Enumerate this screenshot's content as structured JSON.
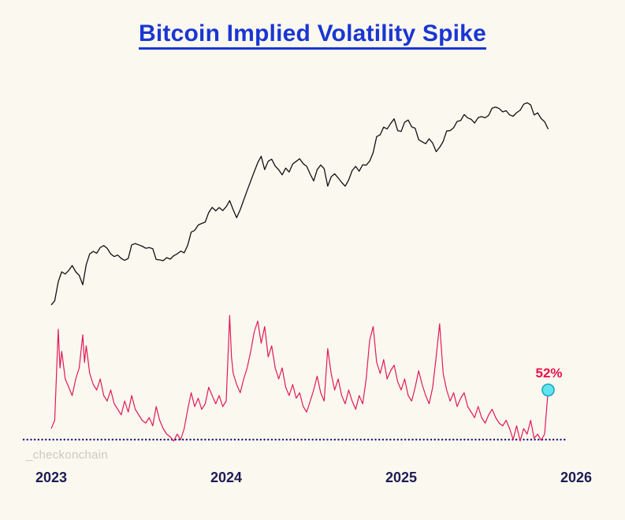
{
  "watermark": "_checkonchain",
  "colors": {
    "background": "#fbf8f0",
    "title": "#1a36d2",
    "price_line": "#111111",
    "vol_line": "#e01a55",
    "baseline": "#20207e",
    "marker_fill": "#63e3f2",
    "marker_stroke": "#18a7bd",
    "annotation": "#e8114b",
    "tick_label": "#1c1c55",
    "watermark": "#ccc9c1"
  },
  "chart_data": {
    "type": "line",
    "title": "Bitcoin Implied Volatility Spike",
    "xlabel": "",
    "ylabel": "",
    "x_ticks": [
      2023,
      2024,
      2025,
      2026
    ],
    "x_range": [
      2023.0,
      2025.84
    ],
    "grid": false,
    "legend": "none",
    "price_scale": "log",
    "price_ylim": [
      15,
      135
    ],
    "vol_ylim": [
      32,
      84
    ],
    "baseline": {
      "value": 34,
      "style": "dotted"
    },
    "annotation": {
      "text": "52%",
      "value": 52,
      "t": 2025.84
    },
    "series": [
      {
        "name": "btc-price-usd-thousands",
        "axis": "price",
        "points": [
          [
            2023.0,
            16.6
          ],
          [
            2023.02,
            17.3
          ],
          [
            2023.04,
            20.9
          ],
          [
            2023.06,
            23.1
          ],
          [
            2023.08,
            22.6
          ],
          [
            2023.1,
            23.4
          ],
          [
            2023.12,
            24.6
          ],
          [
            2023.14,
            23.1
          ],
          [
            2023.16,
            22.3
          ],
          [
            2023.18,
            20.3
          ],
          [
            2023.2,
            24.8
          ],
          [
            2023.22,
            27.6
          ],
          [
            2023.24,
            28.3
          ],
          [
            2023.26,
            27.8
          ],
          [
            2023.28,
            29.4
          ],
          [
            2023.3,
            30.0
          ],
          [
            2023.32,
            29.2
          ],
          [
            2023.34,
            27.6
          ],
          [
            2023.36,
            26.9
          ],
          [
            2023.38,
            27.3
          ],
          [
            2023.4,
            26.4
          ],
          [
            2023.42,
            25.9
          ],
          [
            2023.44,
            26.4
          ],
          [
            2023.46,
            30.2
          ],
          [
            2023.48,
            30.6
          ],
          [
            2023.5,
            30.2
          ],
          [
            2023.52,
            29.8
          ],
          [
            2023.54,
            29.2
          ],
          [
            2023.56,
            29.4
          ],
          [
            2023.58,
            29.1
          ],
          [
            2023.6,
            26.1
          ],
          [
            2023.62,
            26.0
          ],
          [
            2023.64,
            25.8
          ],
          [
            2023.66,
            26.6
          ],
          [
            2023.68,
            26.2
          ],
          [
            2023.7,
            27.1
          ],
          [
            2023.72,
            27.6
          ],
          [
            2023.74,
            28.4
          ],
          [
            2023.76,
            27.9
          ],
          [
            2023.78,
            30.1
          ],
          [
            2023.8,
            34.3
          ],
          [
            2023.82,
            34.9
          ],
          [
            2023.84,
            36.8
          ],
          [
            2023.86,
            37.4
          ],
          [
            2023.88,
            37.9
          ],
          [
            2023.9,
            41.7
          ],
          [
            2023.92,
            43.9
          ],
          [
            2023.94,
            42.4
          ],
          [
            2023.96,
            43.8
          ],
          [
            2023.98,
            42.5
          ],
          [
            2024.0,
            44.2
          ],
          [
            2024.02,
            46.9
          ],
          [
            2024.04,
            42.8
          ],
          [
            2024.06,
            39.6
          ],
          [
            2024.08,
            42.9
          ],
          [
            2024.1,
            47.2
          ],
          [
            2024.12,
            51.9
          ],
          [
            2024.14,
            57.1
          ],
          [
            2024.16,
            62.5
          ],
          [
            2024.18,
            68.4
          ],
          [
            2024.2,
            73.0
          ],
          [
            2024.22,
            63.9
          ],
          [
            2024.24,
            69.5
          ],
          [
            2024.26,
            70.9
          ],
          [
            2024.28,
            66.2
          ],
          [
            2024.3,
            63.8
          ],
          [
            2024.32,
            60.7
          ],
          [
            2024.34,
            64.9
          ],
          [
            2024.36,
            62.4
          ],
          [
            2024.38,
            67.6
          ],
          [
            2024.4,
            69.4
          ],
          [
            2024.42,
            71.2
          ],
          [
            2024.44,
            67.8
          ],
          [
            2024.46,
            66.1
          ],
          [
            2024.48,
            61.1
          ],
          [
            2024.5,
            57.1
          ],
          [
            2024.52,
            63.9
          ],
          [
            2024.54,
            66.9
          ],
          [
            2024.56,
            64.5
          ],
          [
            2024.58,
            54.2
          ],
          [
            2024.6,
            59.5
          ],
          [
            2024.62,
            61.3
          ],
          [
            2024.64,
            58.8
          ],
          [
            2024.66,
            56.3
          ],
          [
            2024.68,
            54.2
          ],
          [
            2024.7,
            57.6
          ],
          [
            2024.72,
            63.3
          ],
          [
            2024.74,
            66.0
          ],
          [
            2024.76,
            62.9
          ],
          [
            2024.78,
            67.1
          ],
          [
            2024.8,
            66.8
          ],
          [
            2024.82,
            69.5
          ],
          [
            2024.84,
            75.7
          ],
          [
            2024.86,
            88.8
          ],
          [
            2024.88,
            90.5
          ],
          [
            2024.9,
            97.6
          ],
          [
            2024.92,
            95.8
          ],
          [
            2024.94,
            101.2
          ],
          [
            2024.96,
            106.0
          ],
          [
            2024.98,
            94.3
          ],
          [
            2025.0,
            93.5
          ],
          [
            2025.02,
            102.4
          ],
          [
            2025.04,
            104.8
          ],
          [
            2025.06,
            97.9
          ],
          [
            2025.08,
            96.4
          ],
          [
            2025.1,
            86.1
          ],
          [
            2025.12,
            84.4
          ],
          [
            2025.14,
            82.7
          ],
          [
            2025.16,
            86.9
          ],
          [
            2025.18,
            83.2
          ],
          [
            2025.2,
            76.4
          ],
          [
            2025.22,
            79.8
          ],
          [
            2025.24,
            84.6
          ],
          [
            2025.26,
            93.9
          ],
          [
            2025.28,
            94.3
          ],
          [
            2025.3,
            97.0
          ],
          [
            2025.32,
            103.3
          ],
          [
            2025.34,
            104.2
          ],
          [
            2025.36,
            110.6
          ],
          [
            2025.38,
            106.9
          ],
          [
            2025.4,
            105.5
          ],
          [
            2025.42,
            101.6
          ],
          [
            2025.44,
            107.3
          ],
          [
            2025.46,
            108.4
          ],
          [
            2025.48,
            107.1
          ],
          [
            2025.5,
            109.7
          ],
          [
            2025.52,
            118.0
          ],
          [
            2025.54,
            119.2
          ],
          [
            2025.56,
            117.5
          ],
          [
            2025.58,
            113.6
          ],
          [
            2025.6,
            114.9
          ],
          [
            2025.62,
            110.3
          ],
          [
            2025.64,
            108.8
          ],
          [
            2025.66,
            112.7
          ],
          [
            2025.68,
            115.5
          ],
          [
            2025.7,
            122.6
          ],
          [
            2025.72,
            124.4
          ],
          [
            2025.74,
            121.8
          ],
          [
            2025.76,
            110.2
          ],
          [
            2025.78,
            112.5
          ],
          [
            2025.8,
            106.3
          ],
          [
            2025.82,
            103.0
          ],
          [
            2025.84,
            95.7
          ]
        ]
      },
      {
        "name": "implied-volatility-pct",
        "axis": "vol",
        "points": [
          [
            2023.0,
            38
          ],
          [
            2023.02,
            41
          ],
          [
            2023.04,
            74
          ],
          [
            2023.05,
            60
          ],
          [
            2023.06,
            66
          ],
          [
            2023.08,
            56
          ],
          [
            2023.1,
            53
          ],
          [
            2023.12,
            50
          ],
          [
            2023.14,
            56
          ],
          [
            2023.16,
            60
          ],
          [
            2023.18,
            72
          ],
          [
            2023.19,
            62
          ],
          [
            2023.2,
            68
          ],
          [
            2023.22,
            58
          ],
          [
            2023.24,
            54
          ],
          [
            2023.26,
            52
          ],
          [
            2023.28,
            56
          ],
          [
            2023.3,
            50
          ],
          [
            2023.32,
            48
          ],
          [
            2023.34,
            52
          ],
          [
            2023.36,
            47
          ],
          [
            2023.38,
            45
          ],
          [
            2023.4,
            43
          ],
          [
            2023.42,
            48
          ],
          [
            2023.44,
            44
          ],
          [
            2023.46,
            50
          ],
          [
            2023.48,
            45
          ],
          [
            2023.5,
            43
          ],
          [
            2023.52,
            41
          ],
          [
            2023.54,
            40
          ],
          [
            2023.56,
            42
          ],
          [
            2023.58,
            39
          ],
          [
            2023.6,
            46
          ],
          [
            2023.62,
            41
          ],
          [
            2023.64,
            38
          ],
          [
            2023.66,
            36
          ],
          [
            2023.68,
            35
          ],
          [
            2023.7,
            33.5
          ],
          [
            2023.72,
            36
          ],
          [
            2023.74,
            34
          ],
          [
            2023.76,
            38
          ],
          [
            2023.78,
            45
          ],
          [
            2023.8,
            51
          ],
          [
            2023.82,
            46
          ],
          [
            2023.84,
            49
          ],
          [
            2023.86,
            45
          ],
          [
            2023.88,
            47
          ],
          [
            2023.9,
            53
          ],
          [
            2023.92,
            50
          ],
          [
            2023.94,
            47
          ],
          [
            2023.96,
            50
          ],
          [
            2023.98,
            46
          ],
          [
            2024.0,
            48
          ],
          [
            2024.02,
            79
          ],
          [
            2024.03,
            64
          ],
          [
            2024.04,
            58
          ],
          [
            2024.06,
            54
          ],
          [
            2024.08,
            51
          ],
          [
            2024.1,
            56
          ],
          [
            2024.12,
            60
          ],
          [
            2024.14,
            66
          ],
          [
            2024.16,
            73
          ],
          [
            2024.18,
            77
          ],
          [
            2024.2,
            69
          ],
          [
            2024.22,
            75
          ],
          [
            2024.24,
            64
          ],
          [
            2024.26,
            68
          ],
          [
            2024.28,
            60
          ],
          [
            2024.3,
            56
          ],
          [
            2024.32,
            60
          ],
          [
            2024.34,
            53
          ],
          [
            2024.36,
            50
          ],
          [
            2024.38,
            54
          ],
          [
            2024.4,
            49
          ],
          [
            2024.42,
            51
          ],
          [
            2024.44,
            46
          ],
          [
            2024.46,
            44
          ],
          [
            2024.48,
            48
          ],
          [
            2024.5,
            52
          ],
          [
            2024.52,
            57
          ],
          [
            2024.54,
            51
          ],
          [
            2024.56,
            48
          ],
          [
            2024.58,
            67
          ],
          [
            2024.6,
            58
          ],
          [
            2024.62,
            52
          ],
          [
            2024.64,
            56
          ],
          [
            2024.66,
            50
          ],
          [
            2024.68,
            47
          ],
          [
            2024.7,
            52
          ],
          [
            2024.72,
            48
          ],
          [
            2024.74,
            45
          ],
          [
            2024.76,
            50
          ],
          [
            2024.78,
            47
          ],
          [
            2024.8,
            56
          ],
          [
            2024.82,
            70
          ],
          [
            2024.84,
            75
          ],
          [
            2024.86,
            62
          ],
          [
            2024.88,
            58
          ],
          [
            2024.9,
            63
          ],
          [
            2024.92,
            56
          ],
          [
            2024.94,
            59
          ],
          [
            2024.96,
            61
          ],
          [
            2024.98,
            55
          ],
          [
            2025.0,
            52
          ],
          [
            2025.02,
            56
          ],
          [
            2025.04,
            50
          ],
          [
            2025.06,
            48
          ],
          [
            2025.08,
            53
          ],
          [
            2025.1,
            59
          ],
          [
            2025.12,
            54
          ],
          [
            2025.14,
            50
          ],
          [
            2025.16,
            47
          ],
          [
            2025.18,
            53
          ],
          [
            2025.2,
            64
          ],
          [
            2025.22,
            76
          ],
          [
            2025.24,
            58
          ],
          [
            2025.26,
            52
          ],
          [
            2025.28,
            48
          ],
          [
            2025.3,
            51
          ],
          [
            2025.32,
            46
          ],
          [
            2025.34,
            49
          ],
          [
            2025.36,
            51
          ],
          [
            2025.38,
            46
          ],
          [
            2025.4,
            44
          ],
          [
            2025.42,
            42
          ],
          [
            2025.44,
            46
          ],
          [
            2025.46,
            42
          ],
          [
            2025.48,
            40
          ],
          [
            2025.5,
            43
          ],
          [
            2025.52,
            45
          ],
          [
            2025.54,
            42
          ],
          [
            2025.56,
            40
          ],
          [
            2025.58,
            39
          ],
          [
            2025.6,
            41
          ],
          [
            2025.62,
            38
          ],
          [
            2025.64,
            34
          ],
          [
            2025.66,
            39
          ],
          [
            2025.68,
            33.5
          ],
          [
            2025.7,
            38
          ],
          [
            2025.72,
            36
          ],
          [
            2025.74,
            41
          ],
          [
            2025.76,
            34.5
          ],
          [
            2025.78,
            36
          ],
          [
            2025.8,
            33.8
          ],
          [
            2025.82,
            36
          ],
          [
            2025.84,
            52
          ]
        ]
      }
    ]
  }
}
